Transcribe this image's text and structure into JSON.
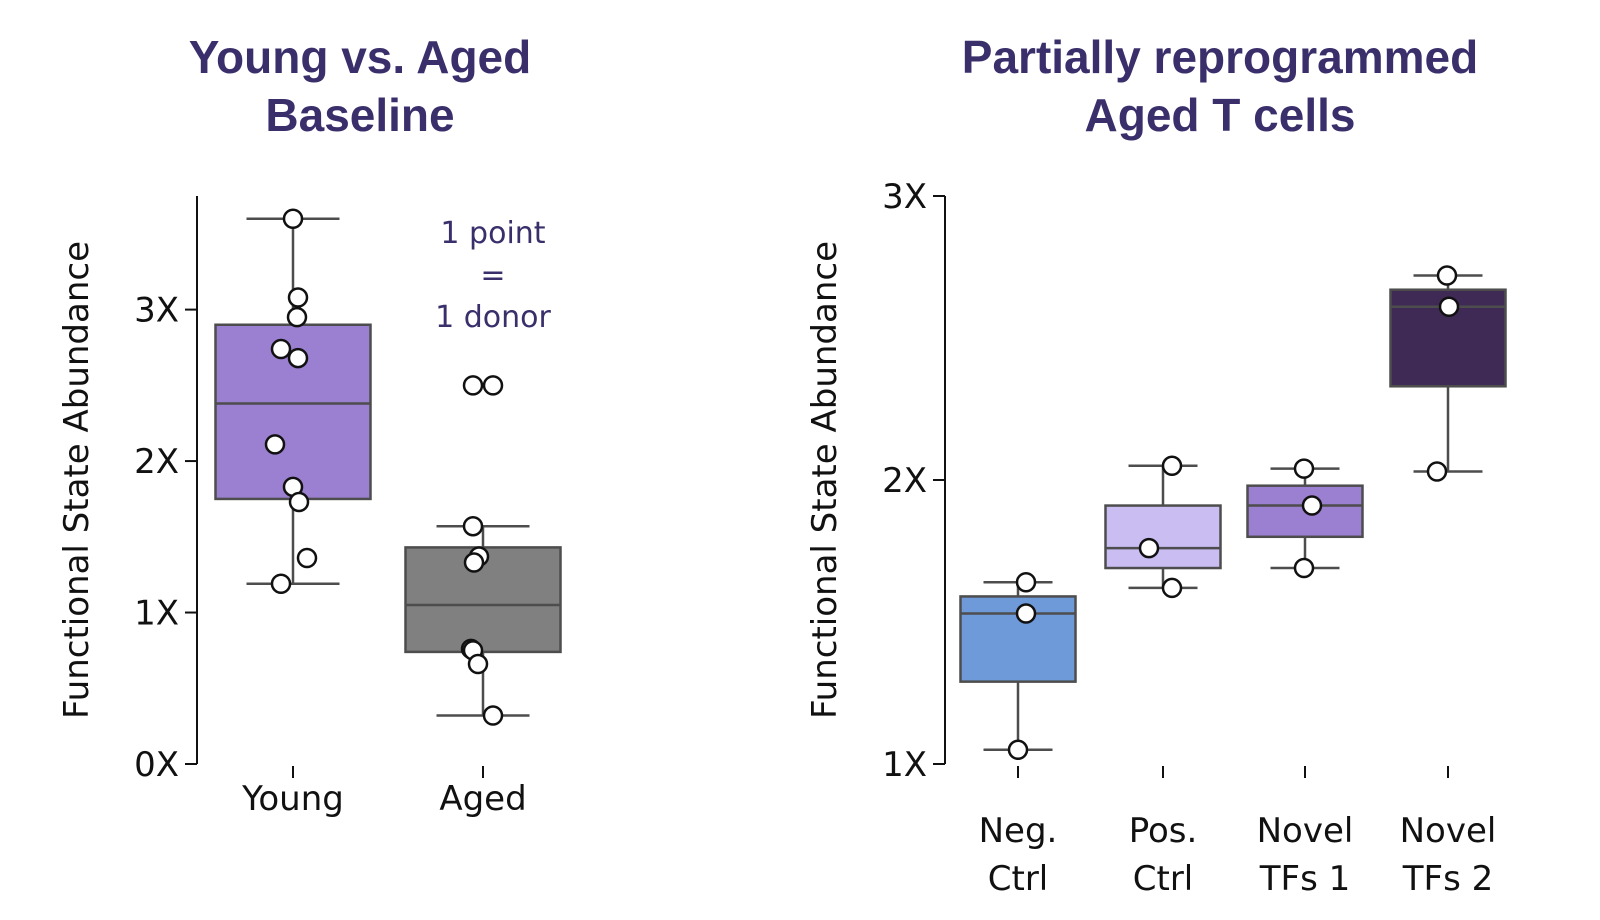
{
  "chart_data": [
    {
      "type": "box",
      "title_lines": [
        "Young vs. Aged",
        "Baseline"
      ],
      "ylabel": "Functional State Abundance",
      "ylim": [
        0,
        3.75
      ],
      "yticks": [
        0,
        1,
        2,
        3
      ],
      "ytick_labels": [
        "0X",
        "1X",
        "2X",
        "3X"
      ],
      "categories": [
        "Young",
        "Aged"
      ],
      "annotation_lines": [
        "1 point",
        "=",
        "1 donor"
      ],
      "series": [
        {
          "category": "Young",
          "color": "#9b7fd0",
          "whisker_low": 1.19,
          "q1": 1.75,
          "median": 2.38,
          "q3": 2.9,
          "whisker_high": 3.6,
          "points": [
            3.6,
            3.08,
            2.95,
            2.74,
            2.68,
            2.11,
            1.83,
            1.73,
            1.36,
            1.19
          ]
        },
        {
          "category": "Aged",
          "color": "#808080",
          "whisker_low": 0.32,
          "q1": 0.74,
          "median": 1.05,
          "q3": 1.43,
          "whisker_high": 1.57,
          "points": [
            2.5,
            2.5,
            1.57,
            1.37,
            1.33,
            0.76,
            0.75,
            0.66,
            0.32
          ]
        }
      ]
    },
    {
      "type": "box",
      "title_lines": [
        "Partially reprogrammed",
        "Aged T cells"
      ],
      "ylabel": "Functional State Abundance",
      "ylim": [
        1,
        3
      ],
      "yticks": [
        1,
        2,
        3
      ],
      "ytick_labels": [
        "1X",
        "2X",
        "3X"
      ],
      "categories": [
        [
          "Neg.",
          "Ctrl"
        ],
        [
          "Pos.",
          "Ctrl"
        ],
        [
          "Novel",
          "TFs 1"
        ],
        [
          "Novel",
          "TFs 2"
        ]
      ],
      "series": [
        {
          "category": "Neg. Ctrl",
          "color": "#6f9ad9",
          "whisker_low": 1.05,
          "q1": 1.29,
          "median": 1.53,
          "q3": 1.59,
          "whisker_high": 1.64,
          "points": [
            1.64,
            1.53,
            1.05
          ]
        },
        {
          "category": "Pos. Ctrl",
          "color": "#c9bdf2",
          "whisker_low": 1.62,
          "q1": 1.69,
          "median": 1.76,
          "q3": 1.91,
          "whisker_high": 2.05,
          "points": [
            2.05,
            1.76,
            1.62
          ]
        },
        {
          "category": "Novel TFs 1",
          "color": "#9b7fd0",
          "whisker_low": 1.69,
          "q1": 1.8,
          "median": 1.91,
          "q3": 1.98,
          "whisker_high": 2.04,
          "points": [
            2.04,
            1.91,
            1.69
          ]
        },
        {
          "category": "Novel TFs 2",
          "color": "#3e2a55",
          "whisker_low": 2.03,
          "q1": 2.33,
          "median": 2.61,
          "q3": 2.67,
          "whisker_high": 2.72,
          "points": [
            2.72,
            2.61,
            2.03
          ]
        }
      ]
    }
  ]
}
